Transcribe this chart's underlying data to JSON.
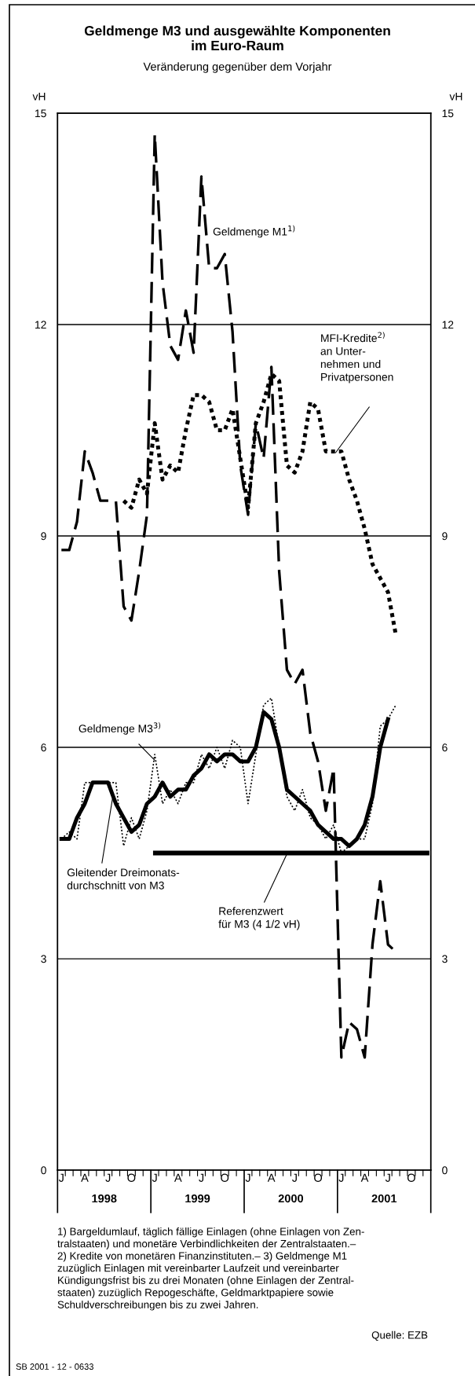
{
  "chart_data": {
    "type": "line",
    "title": "Geldmenge M3 und ausgewählte Komponenten\nim Euro-Raum",
    "subtitle": "Veränderung gegenüber dem Vorjahr",
    "ylabel": "vH",
    "y2label": "vH",
    "categories": [
      "J",
      null,
      null,
      "A",
      null,
      null,
      "J",
      null,
      null,
      "O",
      null,
      null,
      "J",
      null,
      null,
      "A",
      null,
      null,
      "J",
      null,
      null,
      "O",
      null,
      null,
      "J",
      null,
      null,
      "A",
      null,
      null,
      "J",
      null,
      null,
      "O",
      null,
      null,
      "J",
      null,
      null,
      "A",
      null,
      null,
      "J",
      null,
      null,
      "O",
      null,
      null
    ],
    "series": [
      {
        "name": "Geldmenge M1$^{1)}$",
        "color": "#000000",
        "line_style": "dashed",
        "values": [
          8.8,
          8.8,
          9.2,
          10.2,
          9.9,
          9.5,
          9.5,
          9.5,
          8.0,
          7.8,
          8.5,
          9.3,
          14.7,
          12.6,
          11.7,
          11.5,
          12.2,
          11.6,
          14.1,
          12.8,
          12.8,
          13.0,
          11.9,
          10.0,
          9.3,
          10.6,
          10.1,
          11.4,
          8.5,
          7.1,
          6.9,
          7.1,
          6.2,
          5.8,
          5.1,
          5.7,
          1.6,
          2.1,
          2.0,
          1.6,
          3.2,
          4.1,
          3.2,
          3.1,
          null,
          null,
          null,
          null
        ]
      },
      {
        "name": "MFI-Kredite$^{2)}$\nan Unter-\nnehmen und\nPrivatpersonen",
        "color": "#000000",
        "line_style": "dotted",
        "values": [
          null,
          null,
          null,
          null,
          null,
          null,
          null,
          null,
          9.5,
          9.4,
          9.8,
          9.6,
          10.6,
          9.8,
          10.0,
          9.9,
          10.5,
          11.0,
          11.0,
          10.9,
          10.5,
          10.5,
          10.8,
          10.1,
          9.4,
          10.6,
          10.9,
          11.3,
          11.2,
          10.0,
          9.9,
          10.2,
          10.9,
          10.8,
          10.2,
          10.2,
          10.2,
          9.8,
          9.5,
          9.1,
          8.6,
          8.4,
          8.2,
          7.6,
          null,
          null,
          null,
          null
        ]
      },
      {
        "name": "Geldmenge M3$^{3)}$",
        "color": "#000000",
        "line_style": "dotted",
        "values": [
          4.7,
          4.8,
          4.7,
          5.5,
          5.5,
          5.5,
          5.5,
          5.5,
          4.6,
          5.0,
          4.7,
          5.1,
          5.9,
          5.2,
          5.4,
          5.2,
          5.5,
          5.5,
          5.9,
          5.7,
          6.0,
          5.7,
          6.1,
          6.0,
          5.2,
          5.9,
          6.6,
          6.7,
          6.0,
          5.3,
          5.1,
          5.4,
          5.0,
          4.9,
          4.7,
          4.9,
          4.5,
          4.6,
          4.7,
          4.7,
          5.2,
          6.3,
          6.4,
          6.6,
          null,
          null,
          null,
          null
        ]
      },
      {
        "name": "Gleitender Dreimonats-\ndurchschnitt von M3",
        "color": "#000000",
        "line_style": "solid",
        "values": [
          4.7,
          4.7,
          5.0,
          5.2,
          5.5,
          5.5,
          5.5,
          5.2,
          5.0,
          4.8,
          4.9,
          5.2,
          5.3,
          5.5,
          5.3,
          5.4,
          5.4,
          5.6,
          5.7,
          5.9,
          5.8,
          5.9,
          5.9,
          5.8,
          5.8,
          6.0,
          6.5,
          6.4,
          6.0,
          5.4,
          5.3,
          5.2,
          5.1,
          4.9,
          4.8,
          4.7,
          4.7,
          4.6,
          4.7,
          4.9,
          5.3,
          6.0,
          6.4,
          null,
          null,
          null,
          null,
          null
        ]
      }
    ],
    "ref_lines": [
      {
        "axis": "y",
        "value": 4.5,
        "label": "Referenzwert\nfür M3 (4 1/2 vH)",
        "color": "#000000",
        "line_style": "solid"
      }
    ],
    "ylim": [
      0,
      15
    ],
    "yticks": [
      0,
      3,
      6,
      9,
      12,
      15
    ],
    "y2lim": [
      0,
      15
    ],
    "y2ticks": [
      0,
      3,
      6,
      9,
      12,
      15
    ],
    "grid": "y",
    "legend": false,
    "annotations": [
      "1998",
      "1999",
      "2000",
      "2001",
      "1) Bargeldumlauf, täglich fällige Einlagen (ohne Einlagen von Zen-\ntralstaaten) und monetäre Verbindlichkeiten der Zentralstaaten.–\n2) Kredite von monetären Finanzinstituten.– 3) Geldmenge M1\nzuzüglich Einlagen mit vereinbarter Laufzeit und vereinbarter\nKündigungsfrist bis zu drei Monaten (ohne Einlagen der Zentral-\nstaaten) zuzüglich Repogeschäfte, Geldmarktpapiere sowie\nSchuldverschreibungen bis zu zwei Jahren.",
      "Quelle: EZB",
      "SB 2001 - 12 - 0633"
    ]
  }
}
